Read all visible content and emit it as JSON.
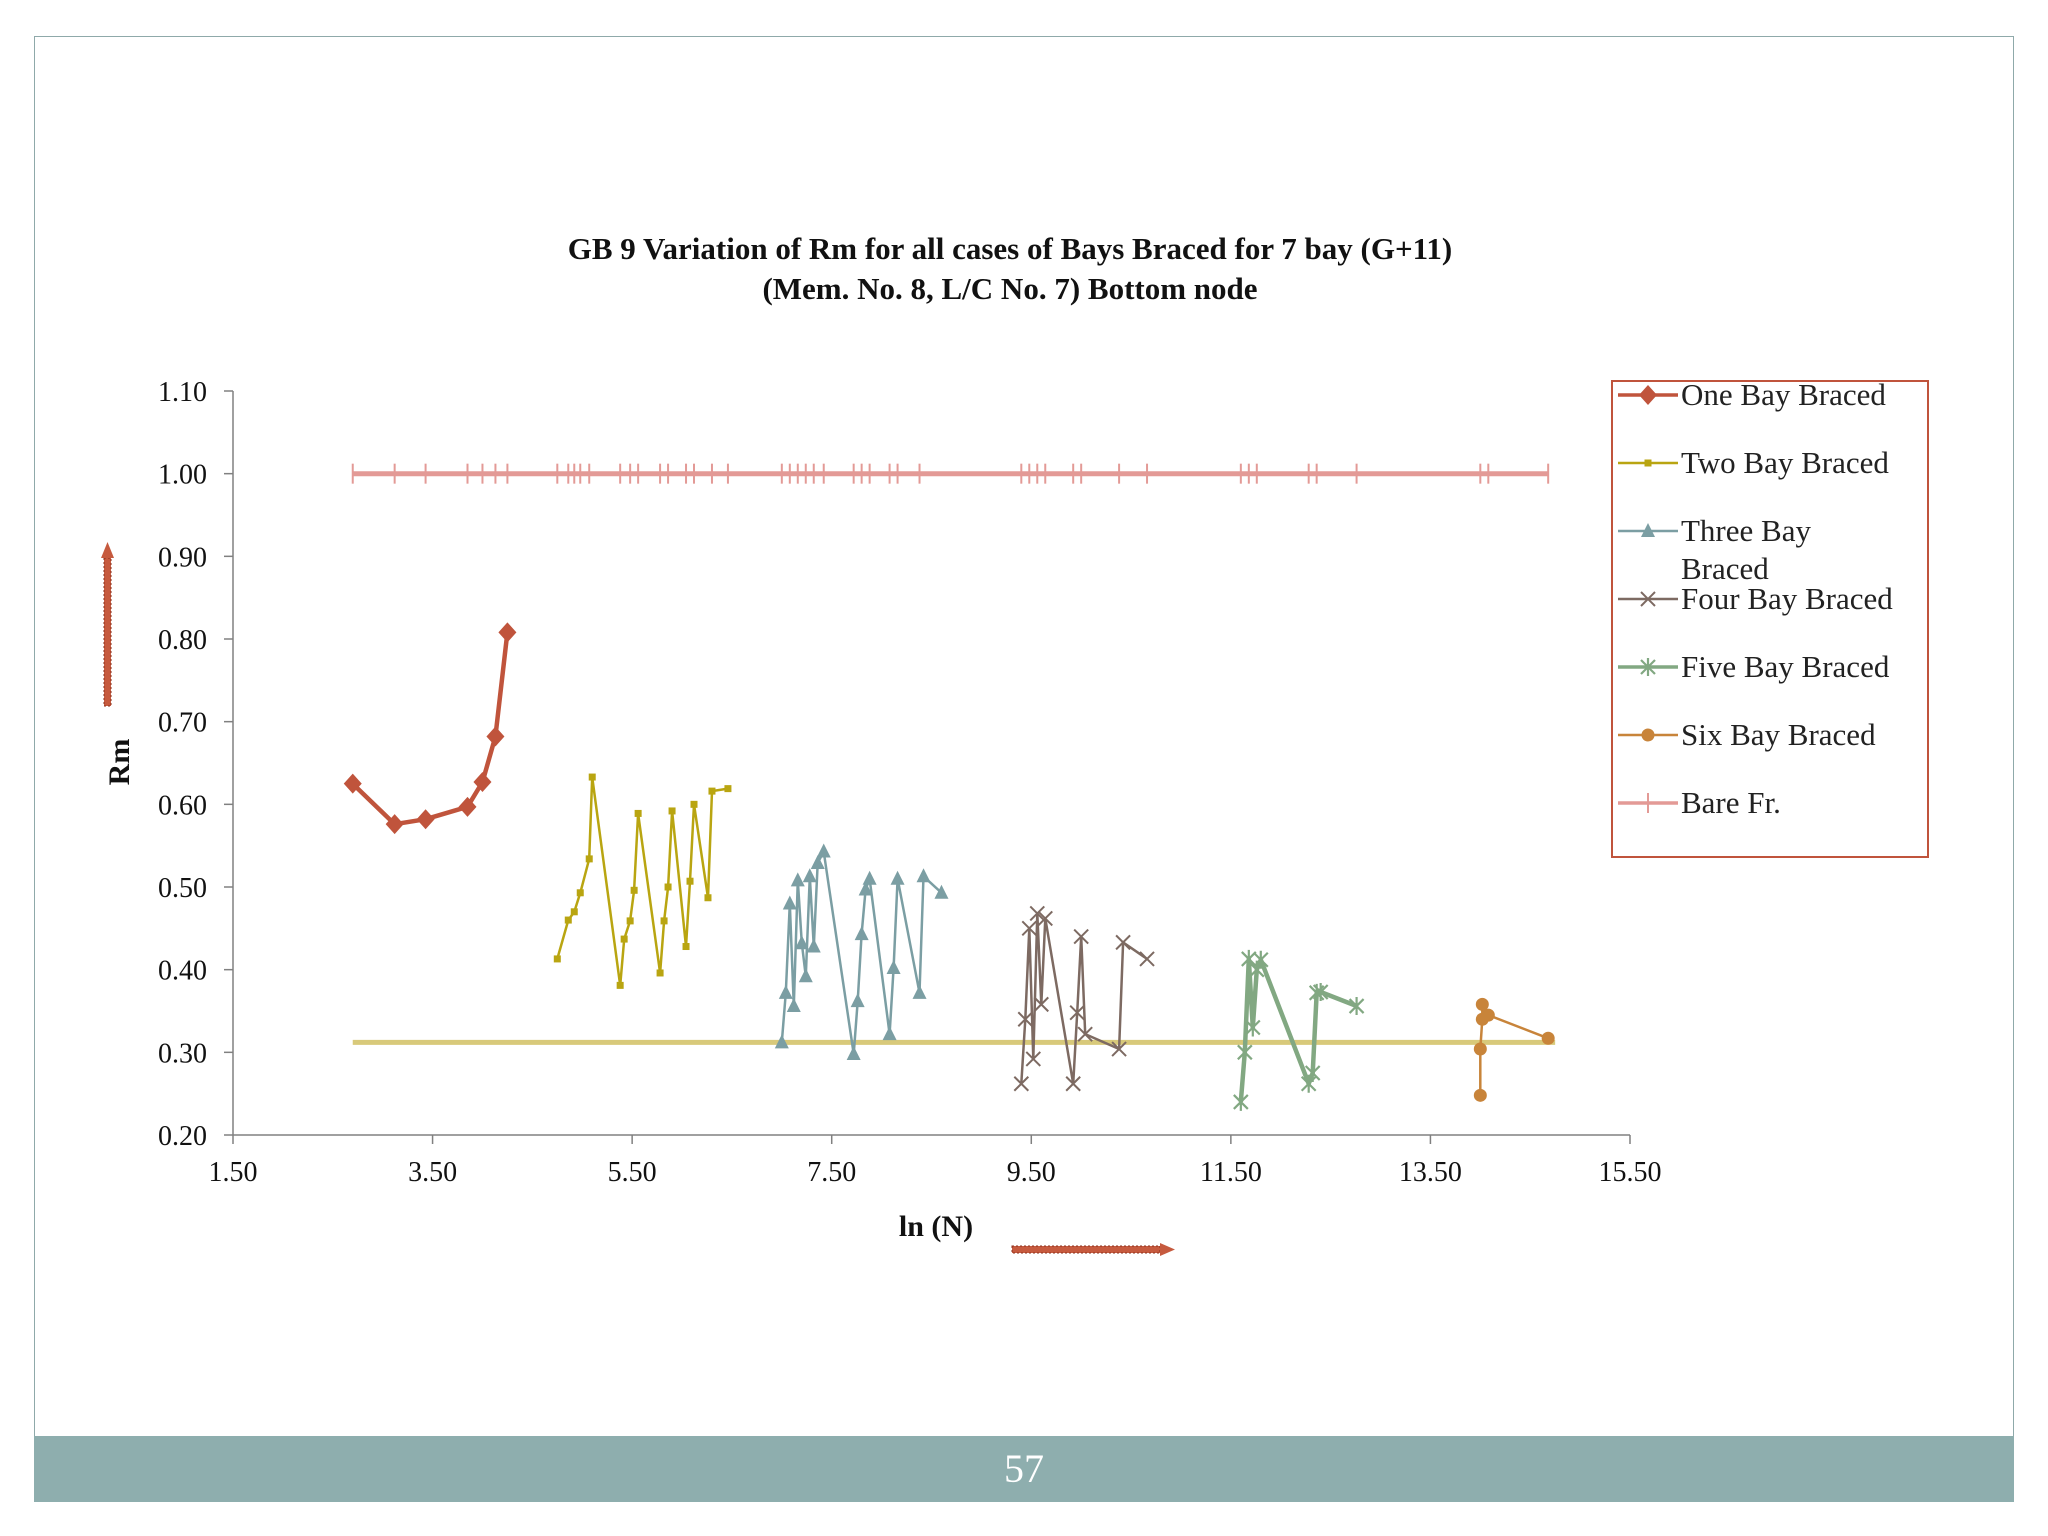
{
  "footer": {
    "page_number": "57"
  },
  "chart_data": {
    "type": "line",
    "title_line1": "GB 9 Variation of Rm for all cases of Bays Braced for 7 bay  (G+11)",
    "title_line2": "(Mem. No. 8, L/C No. 7) Bottom node",
    "xlabel": "ln (N)",
    "ylabel": "Rm",
    "xlim": [
      1.5,
      15.5
    ],
    "ylim": [
      0.2,
      1.1
    ],
    "x_ticks": [
      "1.50",
      "3.50",
      "5.50",
      "7.50",
      "9.50",
      "11.50",
      "13.50",
      "15.50"
    ],
    "y_ticks": [
      "0.20",
      "0.30",
      "0.40",
      "0.50",
      "0.60",
      "0.70",
      "0.80",
      "0.90",
      "1.00",
      "1.10"
    ],
    "legend_position": "right",
    "reference_line": {
      "y": 0.312,
      "x_start": 2.7,
      "x_end": 14.75,
      "color": "#d8c97a"
    },
    "series": [
      {
        "name": "One Bay Braced",
        "label_lines": [
          "One Bay Braced"
        ],
        "color": "#c0543c",
        "marker": "diamond",
        "width": 4.5,
        "x": [
          2.7,
          3.12,
          3.43,
          3.85,
          4.0,
          4.13,
          4.25
        ],
        "y": [
          0.625,
          0.576,
          0.582,
          0.597,
          0.627,
          0.682,
          0.808
        ]
      },
      {
        "name": "Two Bay Braced",
        "label_lines": [
          "Two Bay Braced"
        ],
        "color": "#b9a511",
        "marker": "square",
        "width": 2.5,
        "x": [
          4.75,
          4.86,
          4.92,
          4.98,
          5.07,
          5.1,
          5.38,
          5.42,
          5.48,
          5.52,
          5.56,
          5.78,
          5.82,
          5.86,
          5.9,
          6.04,
          6.08,
          6.12,
          6.26,
          6.3,
          6.46
        ],
        "y": [
          0.413,
          0.46,
          0.47,
          0.493,
          0.534,
          0.633,
          0.381,
          0.437,
          0.459,
          0.496,
          0.589,
          0.396,
          0.459,
          0.5,
          0.592,
          0.428,
          0.507,
          0.6,
          0.487,
          0.616,
          0.619
        ]
      },
      {
        "name": "Three Bay Braced",
        "label_lines": [
          "Three Bay",
          "Braced"
        ],
        "color": "#7b9ea3",
        "marker": "triangle",
        "width": 2.5,
        "x": [
          7.0,
          7.04,
          7.08,
          7.12,
          7.16,
          7.2,
          7.24,
          7.28,
          7.32,
          7.36,
          7.42,
          7.72,
          7.76,
          7.8,
          7.84,
          7.88,
          8.08,
          8.12,
          8.16,
          8.38,
          8.42,
          8.6
        ],
        "y": [
          0.312,
          0.372,
          0.48,
          0.356,
          0.508,
          0.432,
          0.392,
          0.513,
          0.428,
          0.529,
          0.543,
          0.298,
          0.362,
          0.443,
          0.497,
          0.51,
          0.322,
          0.402,
          0.51,
          0.372,
          0.513,
          0.493
        ]
      },
      {
        "name": "Four Bay Braced",
        "label_lines": [
          "Four Bay Braced"
        ],
        "color": "#7d6a62",
        "marker": "x",
        "width": 2.5,
        "x": [
          9.4,
          9.44,
          9.48,
          9.52,
          9.56,
          9.6,
          9.64,
          9.92,
          9.96,
          10.0,
          10.04,
          10.38,
          10.42,
          10.66
        ],
        "y": [
          0.262,
          0.34,
          0.45,
          0.292,
          0.468,
          0.358,
          0.462,
          0.262,
          0.348,
          0.44,
          0.322,
          0.304,
          0.433,
          0.413
        ]
      },
      {
        "name": "Five Bay Braced",
        "label_lines": [
          "Five Bay Braced"
        ],
        "color": "#82a882",
        "marker": "asterisk",
        "width": 4.5,
        "x": [
          11.6,
          11.64,
          11.68,
          11.72,
          11.76,
          11.8,
          12.28,
          12.32,
          12.36,
          12.4,
          12.76
        ],
        "y": [
          0.24,
          0.3,
          0.413,
          0.33,
          0.4,
          0.412,
          0.262,
          0.275,
          0.372,
          0.373,
          0.356
        ]
      },
      {
        "name": "Six Bay Braced",
        "label_lines": [
          "Six Bay Braced"
        ],
        "color": "#c8843a",
        "marker": "circle",
        "width": 2.5,
        "x": [
          14.0,
          14.0,
          14.02,
          14.02,
          14.08,
          14.68
        ],
        "y": [
          0.248,
          0.304,
          0.34,
          0.358,
          0.345,
          0.317
        ]
      },
      {
        "name": "Bare Fr.",
        "label_lines": [
          "Bare Fr."
        ],
        "color": "#e39a96",
        "marker": "plus",
        "width": 5,
        "x": [
          2.7,
          3.12,
          3.43,
          3.85,
          4.0,
          4.13,
          4.25,
          4.75,
          4.86,
          4.92,
          4.98,
          5.07,
          5.38,
          5.48,
          5.56,
          5.78,
          5.86,
          6.04,
          6.12,
          6.3,
          6.46,
          7.0,
          7.08,
          7.16,
          7.24,
          7.32,
          7.42,
          7.72,
          7.8,
          7.88,
          8.08,
          8.16,
          8.38,
          9.4,
          9.48,
          9.56,
          9.64,
          9.92,
          10.0,
          10.38,
          10.66,
          11.6,
          11.68,
          11.76,
          12.28,
          12.36,
          12.76,
          14.0,
          14.08,
          14.68
        ],
        "y": [
          1.0,
          1.0,
          1.0,
          1.0,
          1.0,
          1.0,
          1.0,
          1.0,
          1.0,
          1.0,
          1.0,
          1.0,
          1.0,
          1.0,
          1.0,
          1.0,
          1.0,
          1.0,
          1.0,
          1.0,
          1.0,
          1.0,
          1.0,
          1.0,
          1.0,
          1.0,
          1.0,
          1.0,
          1.0,
          1.0,
          1.0,
          1.0,
          1.0,
          1.0,
          1.0,
          1.0,
          1.0,
          1.0,
          1.0,
          1.0,
          1.0,
          1.0,
          1.0,
          1.0,
          1.0,
          1.0,
          1.0,
          1.0,
          1.0,
          1.0
        ]
      }
    ]
  }
}
